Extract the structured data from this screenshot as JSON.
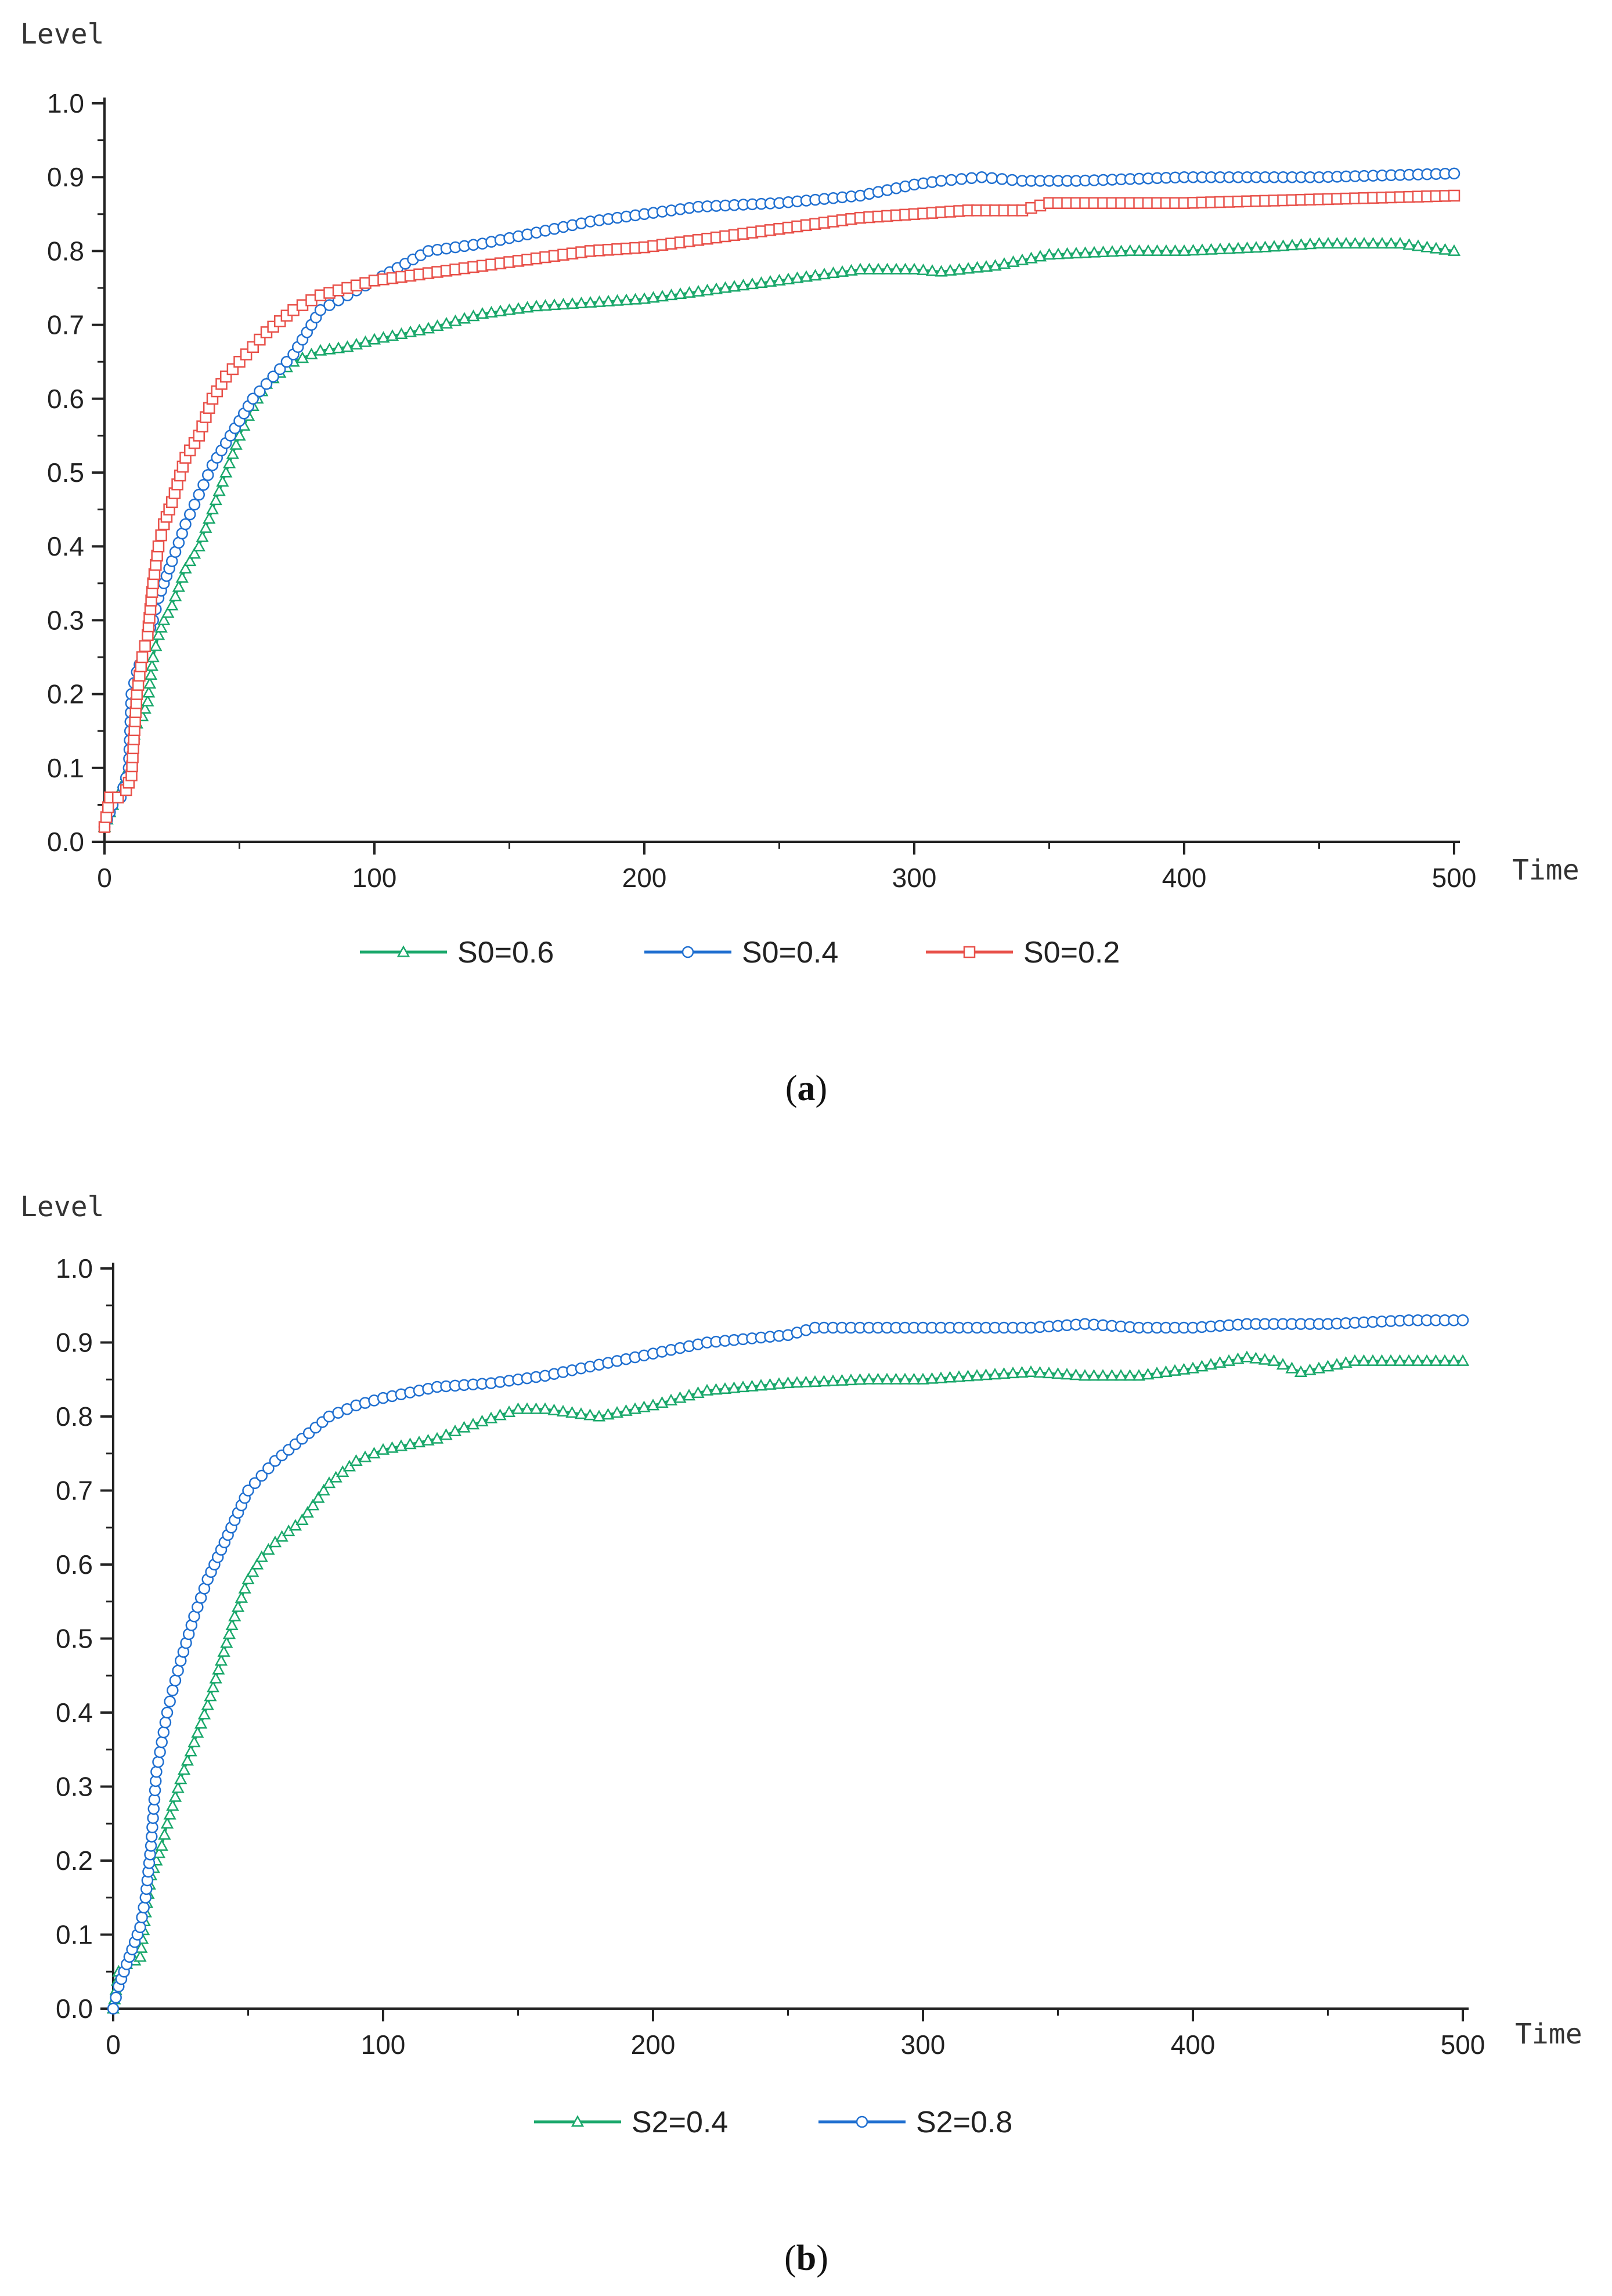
{
  "chart_data": [
    {
      "type": "line",
      "panel_label": "a",
      "xlabel": "Time",
      "ylabel": "Level",
      "xlim": [
        0,
        500
      ],
      "ylim": [
        0,
        1.0
      ],
      "xticks": [
        0,
        100,
        200,
        300,
        400,
        500
      ],
      "yticks": [
        0.0,
        0.1,
        0.2,
        0.3,
        0.4,
        0.5,
        0.6,
        0.7,
        0.8,
        0.9,
        1.0
      ],
      "ytick_labels": [
        "0.0",
        "0.1",
        "0.2",
        "0.3",
        "0.4",
        "0.5",
        "0.6",
        "0.7",
        "0.8",
        "0.9",
        "1.0"
      ],
      "legend": "bottom",
      "series": [
        {
          "name": "S0=0.6",
          "color": "#1aa86b",
          "marker": "triangle",
          "x": [
            0,
            3,
            6,
            9,
            10,
            12,
            14,
            16,
            18,
            20,
            22,
            25,
            30,
            35,
            40,
            45,
            50,
            55,
            60,
            70,
            80,
            90,
            100,
            120,
            140,
            160,
            180,
            200,
            220,
            250,
            280,
            300,
            310,
            330,
            350,
            380,
            400,
            430,
            450,
            480,
            500
          ],
          "y": [
            0.02,
            0.05,
            0.07,
            0.1,
            0.13,
            0.16,
            0.17,
            0.19,
            0.25,
            0.28,
            0.3,
            0.32,
            0.37,
            0.4,
            0.45,
            0.5,
            0.55,
            0.59,
            0.62,
            0.65,
            0.665,
            0.67,
            0.68,
            0.695,
            0.715,
            0.725,
            0.73,
            0.735,
            0.745,
            0.76,
            0.775,
            0.775,
            0.772,
            0.78,
            0.795,
            0.8,
            0.8,
            0.805,
            0.81,
            0.81,
            0.8
          ]
        },
        {
          "name": "S0=0.4",
          "color": "#1f6fd0",
          "marker": "circle",
          "x": [
            0,
            3,
            6,
            9,
            10,
            12,
            14,
            16,
            18,
            20,
            22,
            25,
            30,
            35,
            40,
            45,
            50,
            55,
            60,
            70,
            80,
            90,
            100,
            120,
            140,
            160,
            180,
            200,
            220,
            250,
            280,
            300,
            310,
            325,
            340,
            360,
            400,
            450,
            500
          ],
          "y": [
            0.02,
            0.05,
            0.06,
            0.1,
            0.2,
            0.23,
            0.25,
            0.28,
            0.3,
            0.33,
            0.35,
            0.38,
            0.43,
            0.47,
            0.51,
            0.54,
            0.57,
            0.6,
            0.62,
            0.66,
            0.72,
            0.74,
            0.76,
            0.8,
            0.81,
            0.825,
            0.84,
            0.85,
            0.86,
            0.865,
            0.875,
            0.89,
            0.895,
            0.9,
            0.895,
            0.895,
            0.9,
            0.9,
            0.905
          ]
        },
        {
          "name": "S0=0.2",
          "color": "#e8514a",
          "marker": "square",
          "x": [
            0,
            2,
            5,
            8,
            10,
            12,
            14,
            16,
            18,
            20,
            22,
            25,
            30,
            35,
            40,
            45,
            50,
            55,
            60,
            70,
            80,
            90,
            100,
            120,
            140,
            160,
            180,
            200,
            220,
            250,
            280,
            300,
            320,
            340,
            350,
            400,
            450,
            500
          ],
          "y": [
            0.02,
            0.06,
            0.06,
            0.07,
            0.09,
            0.2,
            0.25,
            0.28,
            0.35,
            0.4,
            0.43,
            0.46,
            0.52,
            0.55,
            0.6,
            0.63,
            0.65,
            0.67,
            0.69,
            0.72,
            0.74,
            0.75,
            0.76,
            0.77,
            0.78,
            0.79,
            0.8,
            0.805,
            0.815,
            0.83,
            0.845,
            0.85,
            0.855,
            0.855,
            0.865,
            0.865,
            0.87,
            0.875
          ]
        }
      ]
    },
    {
      "type": "line",
      "panel_label": "b",
      "xlabel": "Time",
      "ylabel": "Level",
      "xlim": [
        0,
        500
      ],
      "ylim": [
        0,
        1.0
      ],
      "xticks": [
        0,
        100,
        200,
        300,
        400,
        500
      ],
      "yticks": [
        0.0,
        0.1,
        0.2,
        0.3,
        0.4,
        0.5,
        0.6,
        0.7,
        0.8,
        0.9,
        1.0
      ],
      "ytick_labels": [
        "0.0",
        "0.1",
        "0.2",
        "0.3",
        "0.4",
        "0.5",
        "0.6",
        "0.7",
        "0.8",
        "0.9",
        "1.0"
      ],
      "legend": "bottom",
      "series": [
        {
          "name": "S2=0.4",
          "color": "#1aa86b",
          "marker": "triangle",
          "x": [
            0,
            2,
            5,
            8,
            10,
            12,
            14,
            16,
            18,
            20,
            25,
            30,
            35,
            40,
            45,
            50,
            55,
            60,
            70,
            80,
            90,
            100,
            120,
            130,
            150,
            160,
            180,
            200,
            220,
            250,
            280,
            300,
            340,
            360,
            380,
            400,
            420,
            430,
            440,
            460,
            500
          ],
          "y": [
            0.0,
            0.05,
            0.06,
            0.065,
            0.07,
            0.13,
            0.18,
            0.2,
            0.22,
            0.25,
            0.31,
            0.36,
            0.41,
            0.47,
            0.53,
            0.58,
            0.61,
            0.63,
            0.66,
            0.71,
            0.74,
            0.755,
            0.77,
            0.785,
            0.81,
            0.81,
            0.8,
            0.815,
            0.835,
            0.845,
            0.85,
            0.85,
            0.86,
            0.855,
            0.855,
            0.865,
            0.88,
            0.875,
            0.86,
            0.875,
            0.875
          ]
        },
        {
          "name": "S2=0.8",
          "color": "#1f6fd0",
          "marker": "circle",
          "x": [
            0,
            2,
            5,
            8,
            10,
            12,
            14,
            16,
            18,
            20,
            22,
            25,
            30,
            35,
            40,
            45,
            50,
            60,
            70,
            80,
            90,
            100,
            120,
            140,
            160,
            180,
            200,
            220,
            250,
            260,
            300,
            340,
            360,
            380,
            400,
            420,
            450,
            480,
            490,
            500
          ],
          "y": [
            0.0,
            0.03,
            0.06,
            0.09,
            0.11,
            0.15,
            0.22,
            0.32,
            0.36,
            0.4,
            0.43,
            0.47,
            0.53,
            0.58,
            0.62,
            0.66,
            0.7,
            0.74,
            0.77,
            0.8,
            0.815,
            0.825,
            0.84,
            0.845,
            0.855,
            0.87,
            0.885,
            0.9,
            0.91,
            0.92,
            0.92,
            0.92,
            0.925,
            0.92,
            0.92,
            0.925,
            0.925,
            0.93,
            0.93,
            0.93
          ]
        }
      ]
    }
  ]
}
